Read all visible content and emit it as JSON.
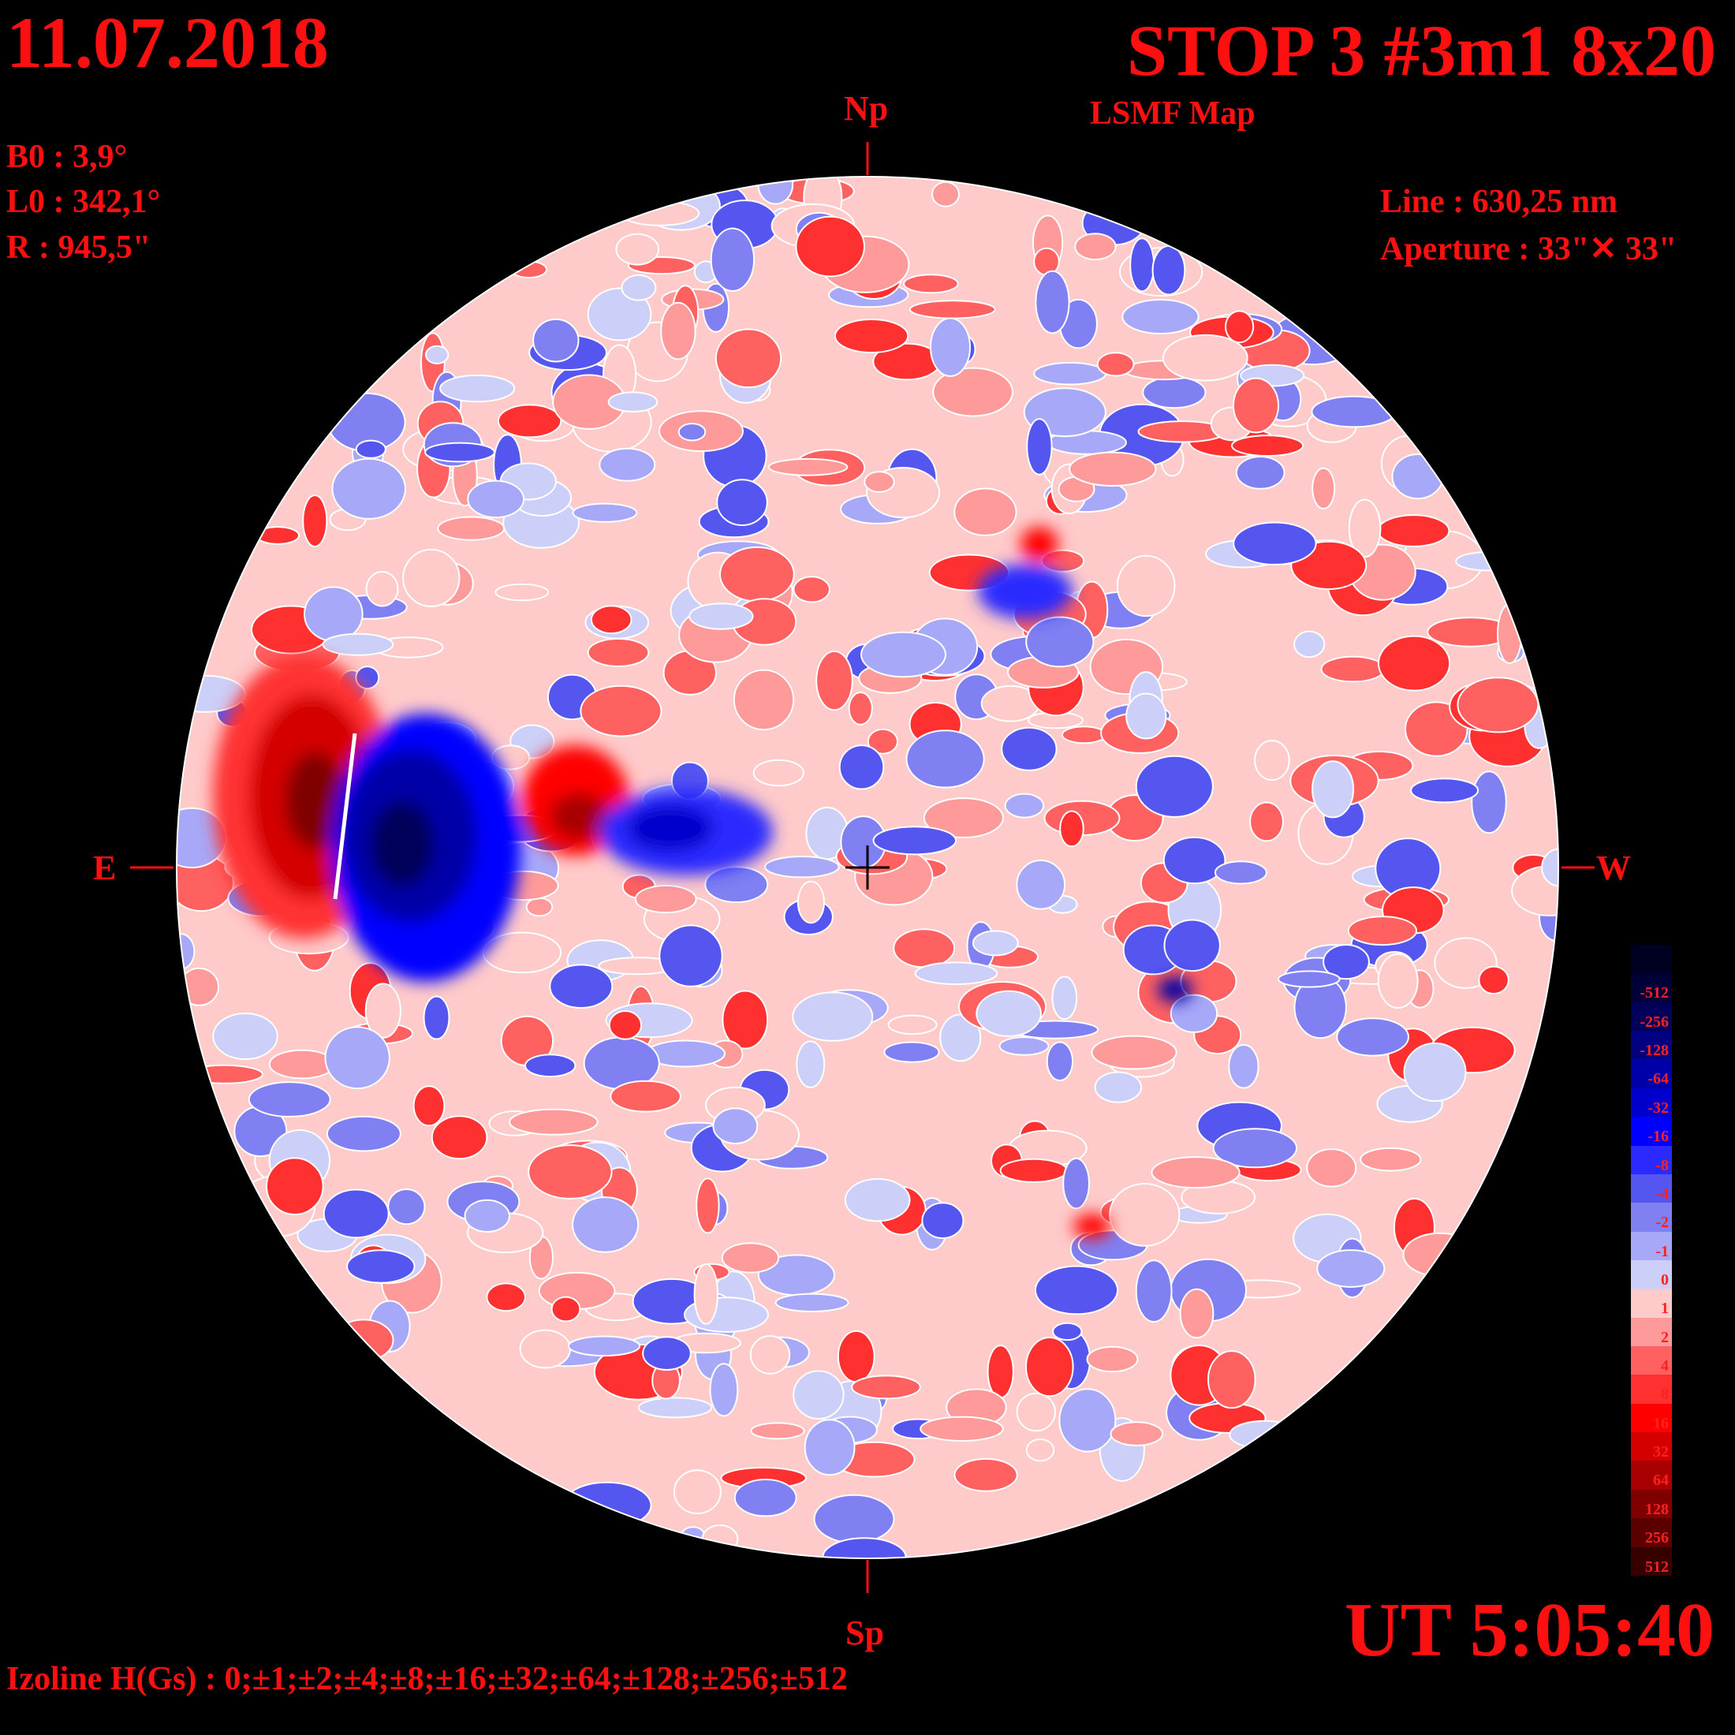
{
  "header": {
    "date": "11.07.2018",
    "title": "STOP 3 #3m1 8x20",
    "subtitle": "LSMF  Map"
  },
  "params_left": {
    "b0": "B0 : 3,9°",
    "l0": "L0 : 342,1°",
    "radius": "R  : 945,5\""
  },
  "params_right": {
    "line": "Line :  630,25 nm",
    "aperture": "Aperture : 33\"✕ 33\""
  },
  "directions": {
    "north": "Np",
    "south": "Sp",
    "east": "E",
    "west": "W"
  },
  "time": "UT 5:05:40",
  "izoline": "Izoline H(Gs) : 0;±1;±2;±4;±8;±16;±32;±64;±128;±256;±512",
  "colors": {
    "background": "#000000",
    "text": "#ff1010",
    "zero_contour": "#ffffff"
  },
  "map": {
    "type": "solar-magnetic-field-disk",
    "unit": "Gs",
    "features": [
      {
        "name": "east-positive-region",
        "polarity": "positive",
        "level": 256
      },
      {
        "name": "east-negative-region",
        "polarity": "negative",
        "level": -256
      },
      {
        "name": "mid-positive-region",
        "polarity": "positive",
        "level": 64
      },
      {
        "name": "mid-negative-region",
        "polarity": "negative",
        "level": -32
      },
      {
        "name": "small-negative-spot",
        "polarity": "negative",
        "level": -64
      },
      {
        "name": "small-positive-spot",
        "polarity": "positive",
        "level": 16
      }
    ]
  },
  "colorbar": {
    "levels": [
      {
        "label": "",
        "color": "#000020"
      },
      {
        "label": "-512",
        "color": "#000038"
      },
      {
        "label": "-256",
        "color": "#00005a"
      },
      {
        "label": "-128",
        "color": "#000080"
      },
      {
        "label": "-64",
        "color": "#0000a8"
      },
      {
        "label": "-32",
        "color": "#0000cc"
      },
      {
        "label": "-16",
        "color": "#0000ff"
      },
      {
        "label": "-8",
        "color": "#2a2aff"
      },
      {
        "label": "-4",
        "color": "#5555f0"
      },
      {
        "label": "-2",
        "color": "#8080f2"
      },
      {
        "label": "-1",
        "color": "#a8a8f8"
      },
      {
        "label": "0",
        "color": "#cccff8"
      },
      {
        "label": "1",
        "color": "#ffcaca"
      },
      {
        "label": "2",
        "color": "#ff9a9a"
      },
      {
        "label": "4",
        "color": "#ff6060"
      },
      {
        "label": "8",
        "color": "#ff3030"
      },
      {
        "label": "16",
        "color": "#ff0000"
      },
      {
        "label": "32",
        "color": "#d40000"
      },
      {
        "label": "64",
        "color": "#a80000"
      },
      {
        "label": "128",
        "color": "#800000"
      },
      {
        "label": "256",
        "color": "#5a0000"
      },
      {
        "label": "512",
        "color": "#360000"
      }
    ]
  }
}
